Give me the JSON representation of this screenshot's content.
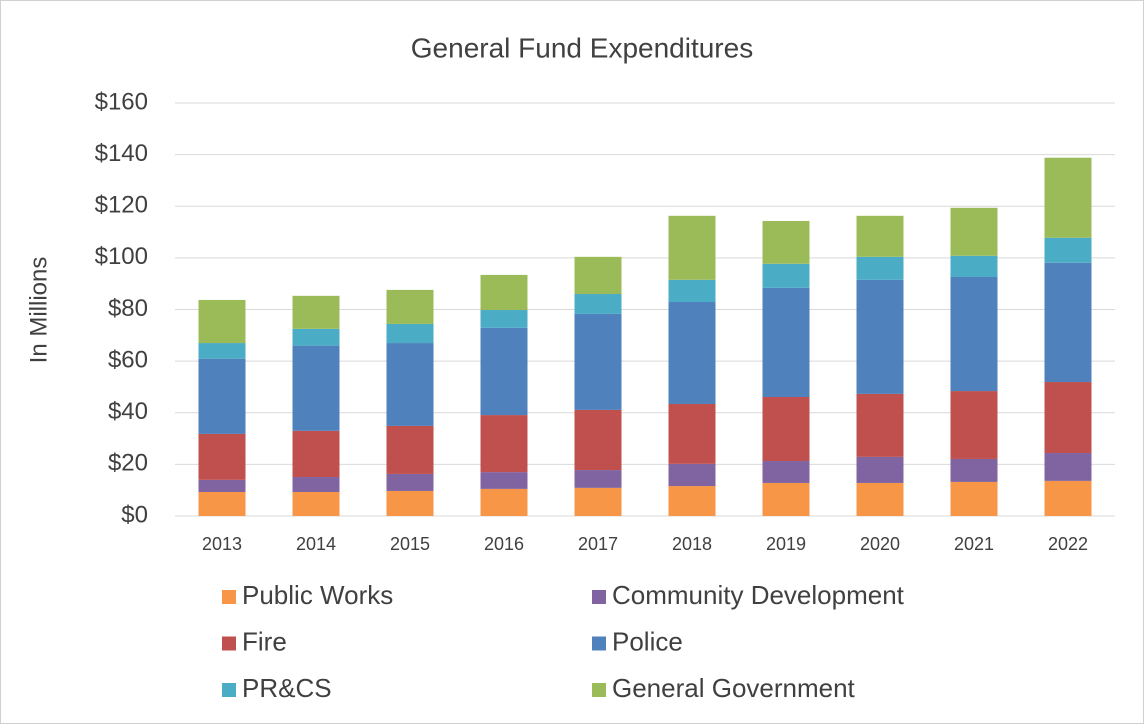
{
  "chart_data": {
    "type": "stacked_bar",
    "title": "General Fund Expenditures",
    "y_label": "In Millions",
    "categories": [
      "2013",
      "2014",
      "2015",
      "2016",
      "2017",
      "2018",
      "2019",
      "2020",
      "2021",
      "2022"
    ],
    "series": [
      {
        "name": "Public Works",
        "color": "#f79646",
        "values": [
          9.3,
          9.3,
          9.7,
          10.5,
          10.9,
          11.6,
          12.8,
          12.8,
          13.2,
          13.6
        ]
      },
      {
        "name": "Community Development",
        "color": "#8064a2",
        "values": [
          4.7,
          5.8,
          6.6,
          6.5,
          6.9,
          8.6,
          8.5,
          10.1,
          8.9,
          10.8
        ]
      },
      {
        "name": "Fire",
        "color": "#c0504d",
        "values": [
          17.8,
          17.9,
          18.6,
          22.1,
          23.3,
          23.2,
          24.8,
          24.4,
          26.3,
          27.5
        ]
      },
      {
        "name": "Police",
        "color": "#4f81bd",
        "values": [
          29.1,
          33,
          32.1,
          33.8,
          37.2,
          39.5,
          42.3,
          44.2,
          44.2,
          46.2
        ]
      },
      {
        "name": "PR&CS",
        "color": "#4bacc6",
        "values": [
          6.1,
          6.5,
          7.4,
          6.9,
          7.7,
          8.6,
          9.3,
          8.9,
          8.2,
          9.7
        ]
      },
      {
        "name": "General Government",
        "color": "#9bbb59",
        "values": [
          16.7,
          12.8,
          13.2,
          13.6,
          14.4,
          24.8,
          16.6,
          15.9,
          18.6,
          31
        ]
      }
    ],
    "ylim": [
      0,
      160
    ],
    "yticks": [
      {
        "value": 0,
        "label": "$0"
      },
      {
        "value": 20,
        "label": "$20"
      },
      {
        "value": 40,
        "label": "$40"
      },
      {
        "value": 60,
        "label": "$60"
      },
      {
        "value": 80,
        "label": "$80"
      },
      {
        "value": 100,
        "label": "$100"
      },
      {
        "value": 120,
        "label": "$120"
      },
      {
        "value": 140,
        "label": "$140"
      },
      {
        "value": 160,
        "label": "$160"
      }
    ],
    "grid": true,
    "legend": "bottom"
  }
}
